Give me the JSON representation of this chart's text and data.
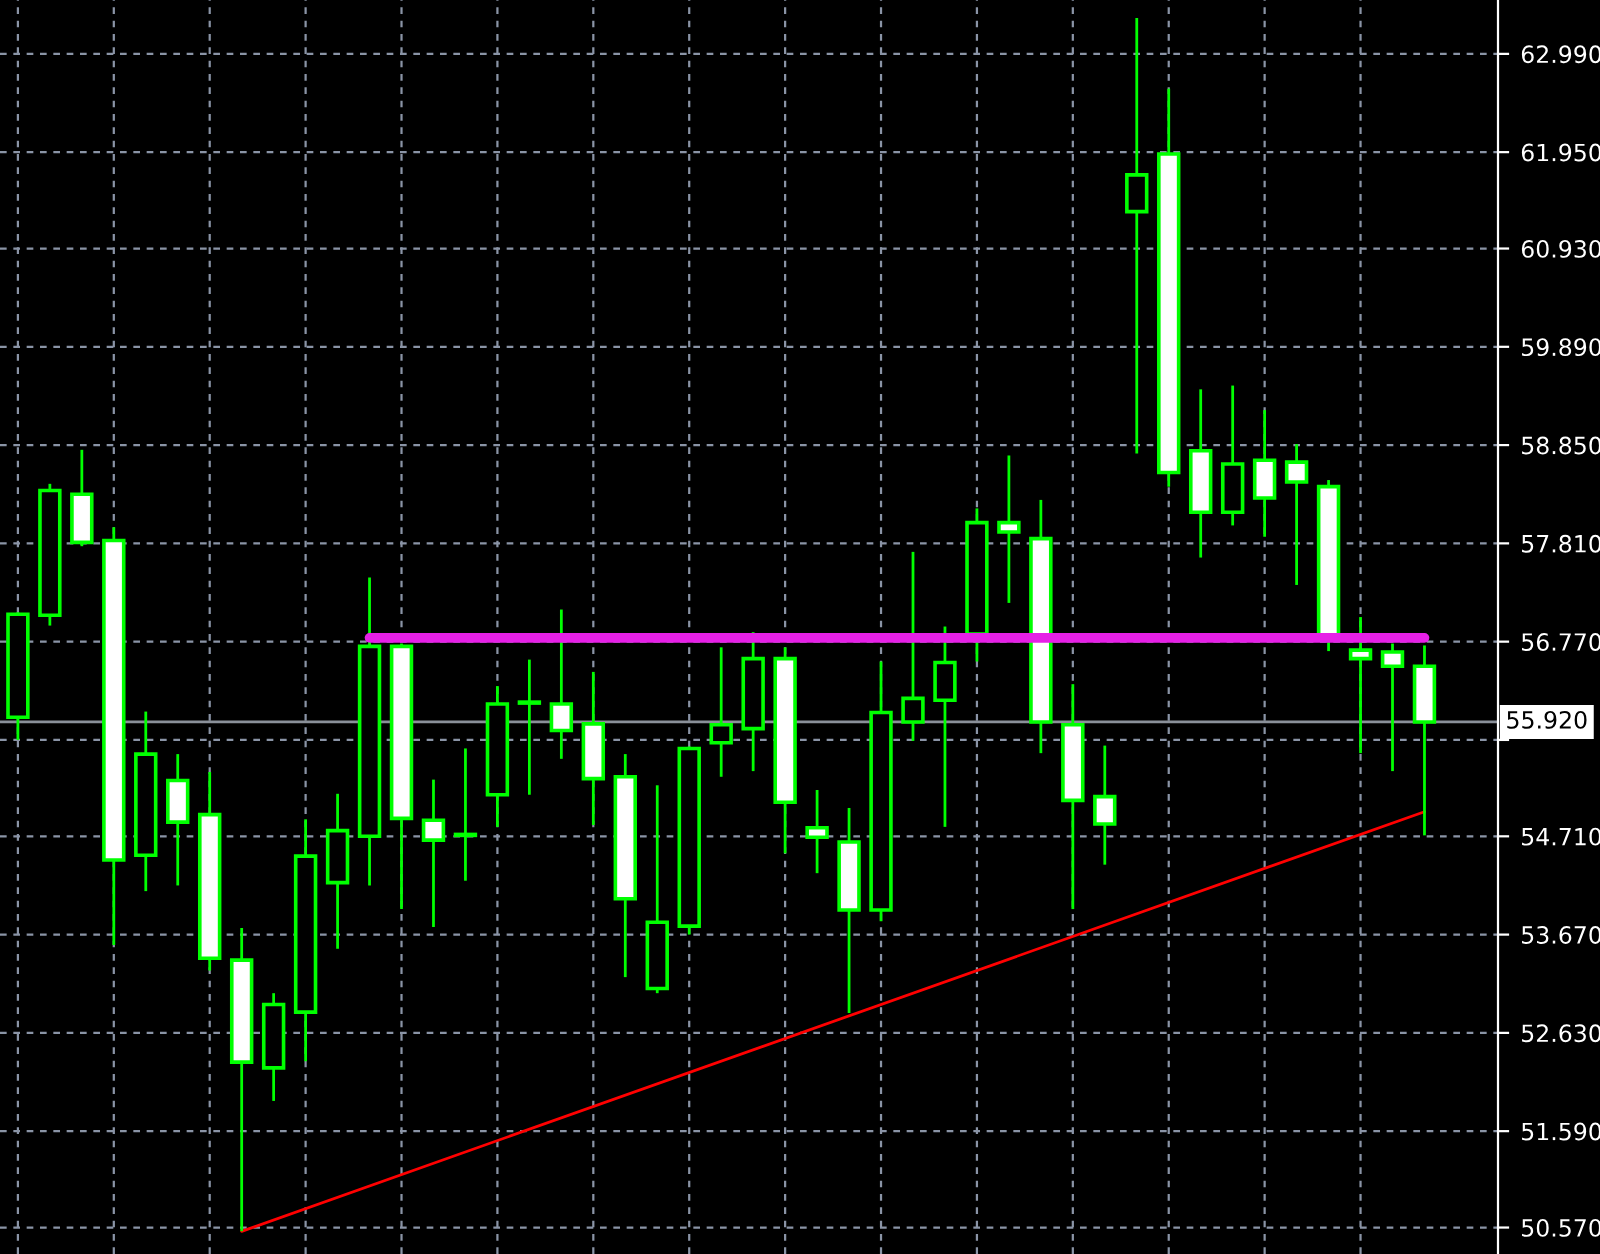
{
  "chart_data": {
    "type": "candlestick",
    "categories": [
      null,
      null,
      null,
      null,
      null,
      null,
      null,
      null,
      null,
      null,
      null,
      null,
      null,
      null,
      null,
      null,
      null,
      null,
      null,
      null,
      null,
      null,
      null,
      null,
      null,
      null,
      null,
      null,
      null,
      null,
      null,
      null,
      null,
      null,
      null,
      null,
      null,
      null,
      null,
      null,
      null,
      null,
      null,
      null,
      null
    ],
    "ohlc": [
      [
        55.97,
        57.08,
        55.73,
        57.06
      ],
      [
        57.05,
        58.44,
        56.94,
        58.37
      ],
      [
        58.33,
        58.8,
        57.78,
        57.82
      ],
      [
        57.84,
        57.98,
        53.56,
        54.46
      ],
      [
        54.51,
        56.03,
        54.13,
        55.58
      ],
      [
        55.3,
        55.58,
        54.19,
        54.86
      ],
      [
        54.94,
        55.39,
        53.29,
        53.42
      ],
      [
        53.4,
        53.74,
        50.53,
        52.32
      ],
      [
        52.26,
        53.05,
        51.91,
        52.93
      ],
      [
        52.85,
        54.89,
        52.33,
        54.5
      ],
      [
        54.22,
        55.16,
        53.52,
        54.77
      ],
      [
        54.71,
        57.45,
        54.19,
        56.72
      ],
      [
        56.72,
        56.75,
        53.94,
        54.9
      ],
      [
        54.88,
        55.31,
        53.75,
        54.67
      ],
      [
        54.73,
        55.64,
        54.24,
        54.72
      ],
      [
        55.15,
        56.3,
        54.81,
        56.11
      ],
      [
        56.12,
        56.58,
        55.15,
        56.13
      ],
      [
        56.11,
        57.11,
        55.53,
        55.83
      ],
      [
        55.9,
        56.45,
        54.83,
        55.32
      ],
      [
        55.34,
        55.58,
        53.22,
        54.05
      ],
      [
        53.1,
        55.25,
        53.05,
        53.8
      ],
      [
        53.76,
        55.66,
        53.67,
        55.64
      ],
      [
        55.7,
        56.71,
        55.34,
        55.89
      ],
      [
        55.85,
        56.87,
        55.4,
        56.59
      ],
      [
        56.59,
        56.71,
        54.53,
        55.07
      ],
      [
        54.8,
        55.2,
        54.32,
        54.7
      ],
      [
        54.65,
        55.01,
        52.84,
        53.93
      ],
      [
        53.93,
        56.56,
        53.81,
        56.02
      ],
      [
        55.92,
        57.72,
        55.72,
        56.17
      ],
      [
        56.15,
        56.93,
        54.81,
        56.55
      ],
      [
        56.85,
        58.18,
        56.56,
        58.03
      ],
      [
        58.03,
        58.74,
        57.18,
        57.93
      ],
      [
        57.86,
        58.27,
        55.59,
        55.92
      ],
      [
        55.89,
        56.32,
        53.94,
        55.09
      ],
      [
        55.13,
        55.67,
        54.41,
        54.84
      ],
      [
        61.32,
        63.37,
        58.76,
        61.71
      ],
      [
        61.93,
        62.62,
        58.41,
        58.56
      ],
      [
        58.79,
        59.44,
        57.66,
        58.14
      ],
      [
        58.14,
        59.48,
        58.0,
        58.65
      ],
      [
        58.69,
        59.22,
        57.88,
        58.29
      ],
      [
        58.67,
        58.86,
        57.37,
        58.46
      ],
      [
        58.41,
        58.48,
        56.67,
        56.82
      ],
      [
        56.68,
        57.03,
        55.59,
        56.59
      ],
      [
        56.66,
        56.75,
        55.4,
        56.51
      ],
      [
        56.51,
        56.73,
        54.72,
        55.92
      ]
    ],
    "color": "#00ff00",
    "series": [
      {
        "type": "line",
        "values": [
          null,
          null,
          null,
          null,
          null,
          null,
          null,
          50.53,
          null,
          null,
          null,
          null,
          null,
          null,
          null,
          null,
          null,
          null,
          null,
          null,
          null,
          null,
          null,
          null,
          null,
          null,
          null,
          null,
          null,
          null,
          null,
          null,
          null,
          null,
          null,
          null,
          null,
          null,
          null,
          null,
          null,
          null,
          null,
          null,
          54.97
        ],
        "color": "#ff0000"
      },
      {
        "type": "line",
        "values": [
          null,
          null,
          null,
          null,
          null,
          null,
          null,
          null,
          null,
          null,
          null,
          56.81,
          56.81,
          56.81,
          56.81,
          56.81,
          56.81,
          56.81,
          56.81,
          56.81,
          56.81,
          56.81,
          56.81,
          56.81,
          56.81,
          56.81,
          56.81,
          56.81,
          56.81,
          56.81,
          56.81,
          56.81,
          56.81,
          56.81,
          56.81,
          56.81,
          56.81,
          56.81,
          56.81,
          56.81,
          56.81,
          56.81,
          56.81,
          56.81,
          56.81
        ],
        "color": "#e620e6"
      }
    ],
    "ylim": [
      50.29,
      63.56
    ],
    "yticks": [
      {
        "value": 62.99,
        "label": "62.990"
      },
      {
        "value": 61.95,
        "label": "61.950"
      },
      {
        "value": 60.93,
        "label": "60.930"
      },
      {
        "value": 59.89,
        "label": "59.890"
      },
      {
        "value": 58.85,
        "label": "58.850"
      },
      {
        "value": 57.81,
        "label": "57.810"
      },
      {
        "value": 56.77,
        "label": "56.770"
      },
      {
        "value": 55.73,
        "label": null
      },
      {
        "value": 54.71,
        "label": "54.710"
      },
      {
        "value": 53.67,
        "label": "53.670"
      },
      {
        "value": 52.63,
        "label": "52.630"
      },
      {
        "value": 51.59,
        "label": "51.590"
      },
      {
        "value": 50.57,
        "label": "50.570"
      }
    ],
    "ref_lines": [
      {
        "axis": "y",
        "value": 55.92,
        "label": "55.920",
        "color": "#8a9099"
      }
    ],
    "grid": true,
    "tick_labels": "y"
  }
}
